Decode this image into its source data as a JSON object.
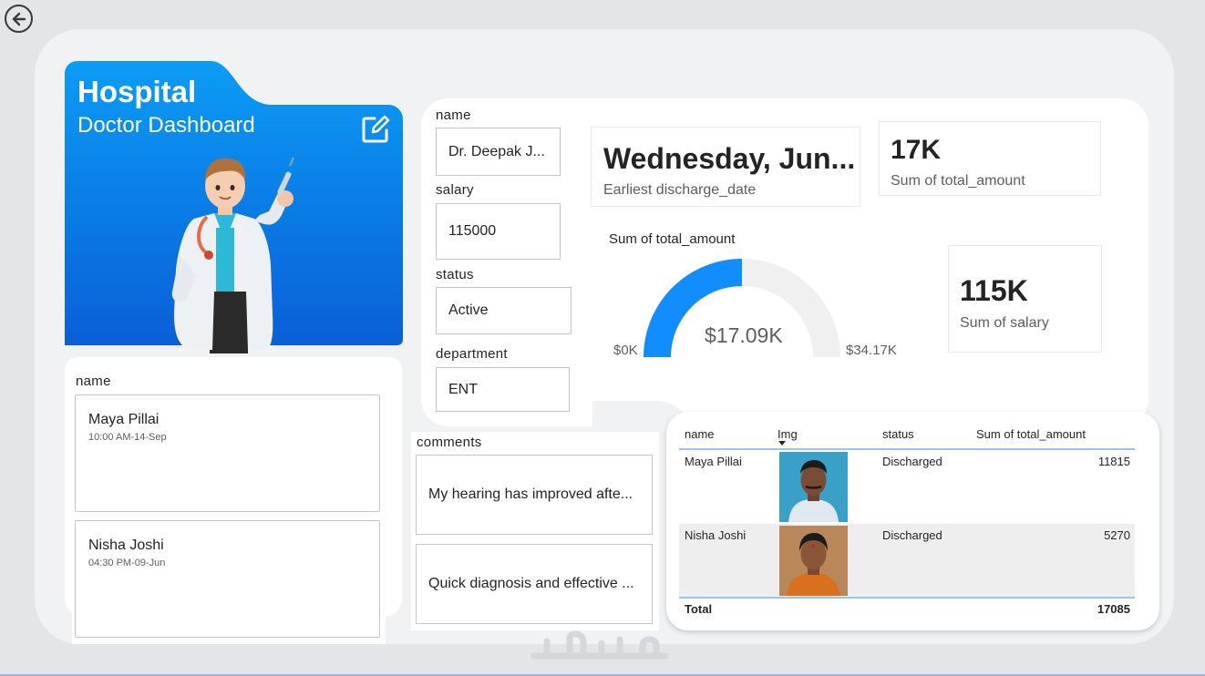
{
  "hero": {
    "title": "Hospital",
    "subtitle": "Doctor Dashboard",
    "brand_color": "#0a74e8"
  },
  "patients_slicer": {
    "label": "name",
    "items": [
      {
        "name": "Maya Pillai",
        "time": "10:00 AM-14-Sep"
      },
      {
        "name": "Nisha Joshi",
        "time": "04:30 PM-09-Jun"
      }
    ]
  },
  "doctor_filters": {
    "name_label": "name",
    "name_value": "Dr. Deepak J...",
    "salary_label": "salary",
    "salary_value": "115000",
    "status_label": "status",
    "status_value": "Active",
    "department_label": "department",
    "department_value": "ENT"
  },
  "kpis": {
    "date_value": "Wednesday, Jun...",
    "date_label": "Earliest discharge_date",
    "amount_value": "17K",
    "amount_label": "Sum of total_amount",
    "salary_value": "115K",
    "salary_label": "Sum of salary"
  },
  "gauge": {
    "title": "Sum of total_amount",
    "value_label": "$17.09K",
    "min_label": "$0K",
    "max_label": "$34.17K",
    "value": 17085,
    "min": 0,
    "max": 34170,
    "fill_color": "#118dff",
    "track_color": "#f0f0f0"
  },
  "comments": {
    "label": "comments",
    "items": [
      "My hearing has improved afte...",
      "Quick diagnosis and effective ..."
    ]
  },
  "table": {
    "headers": [
      "name",
      "Img",
      "status",
      "Sum of total_amount"
    ],
    "rows": [
      {
        "name": "Maya Pillai",
        "status": "Discharged",
        "amount": "11815"
      },
      {
        "name": "Nisha Joshi",
        "status": "Discharged",
        "amount": "5270"
      }
    ],
    "total_label": "Total",
    "total_value": "17085"
  },
  "watermark": "خمسات"
}
